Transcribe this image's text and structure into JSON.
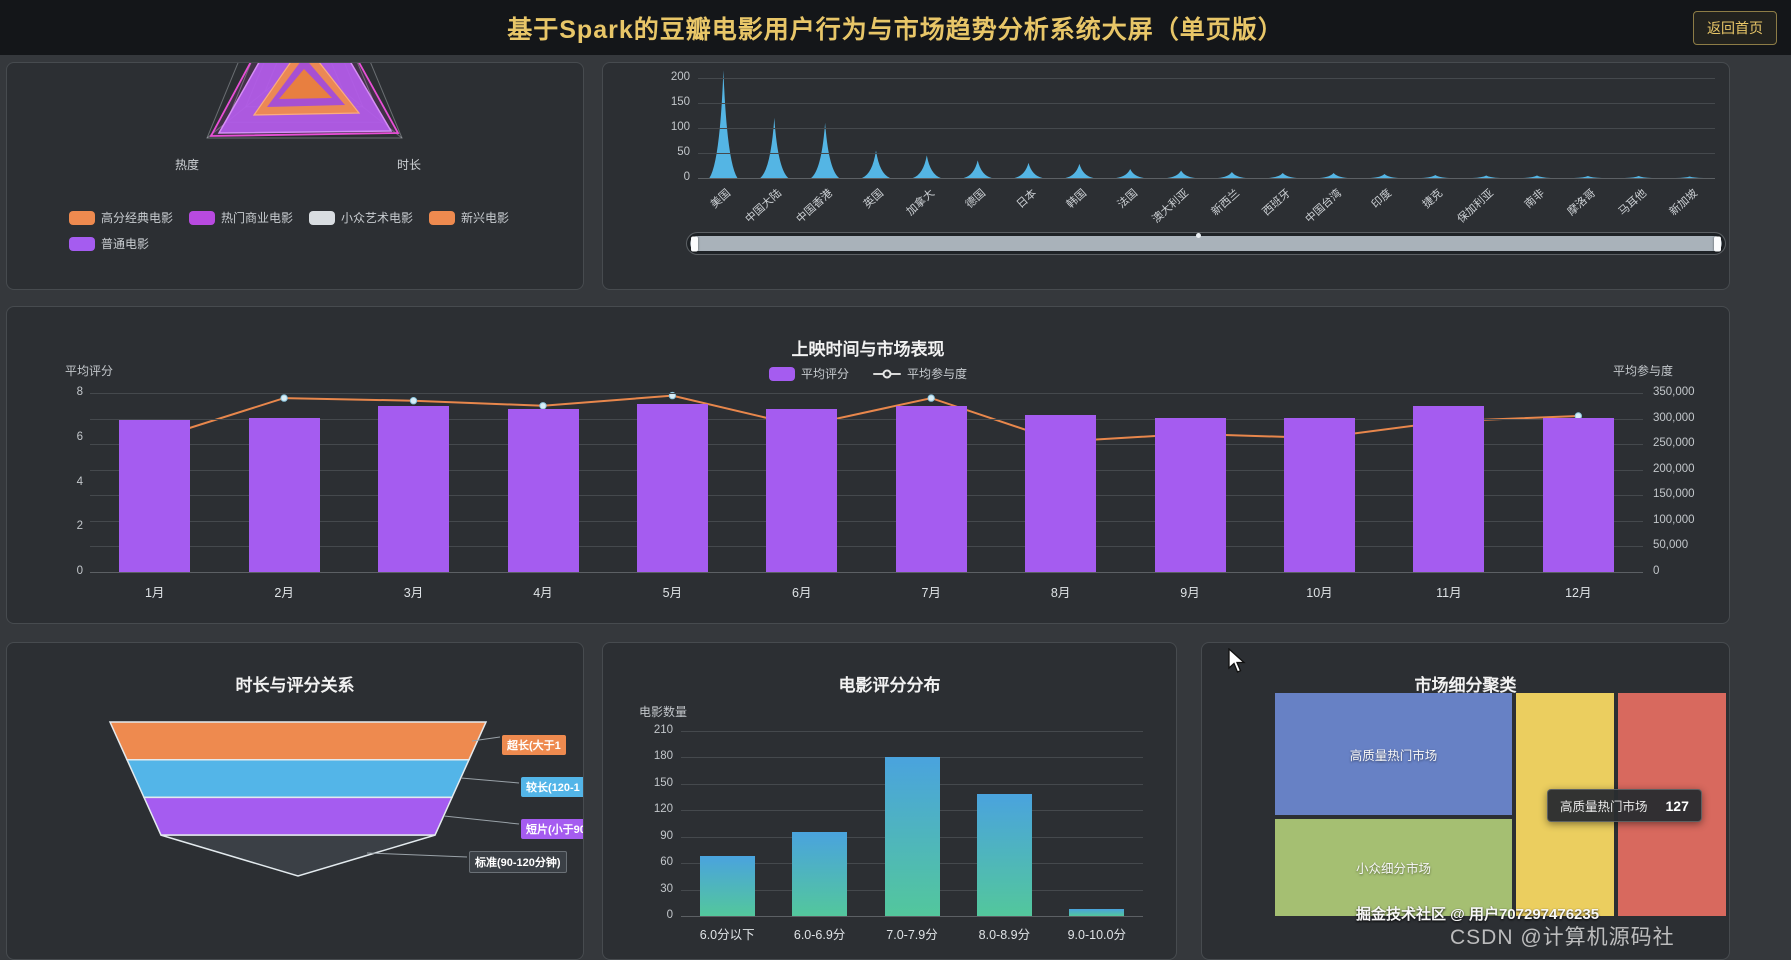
{
  "header": {
    "title": "基于Spark的豆瓣电影用户行为与市场趋势分析系统大屏（单页版）",
    "back_button": "返回首页"
  },
  "radar_panel": {
    "axis_labels": {
      "left": "热度",
      "right": "时长"
    },
    "legend": [
      {
        "label": "高分经典电影",
        "color": "#ee8a4f"
      },
      {
        "label": "热门商业电影",
        "color": "#b84ae0"
      },
      {
        "label": "小众艺术电影",
        "color": "#d9dde1"
      },
      {
        "label": "新兴电影",
        "color": "#ee8a4f"
      },
      {
        "label": "普通电影",
        "color": "#a55cf0"
      }
    ]
  },
  "monthly_panel": {
    "title": "上映时间与市场表现",
    "legend": [
      {
        "label": "平均评分",
        "type": "bar",
        "color": "#a55cf0"
      },
      {
        "label": "平均参与度",
        "type": "line",
        "color": "#d8d8d8"
      }
    ],
    "left_axis_name": "平均评分",
    "right_axis_name": "平均参与度"
  },
  "funnel_panel": {
    "title": "时长与评分关系"
  },
  "rating_panel": {
    "title": "电影评分分布",
    "ylabel": "电影数量"
  },
  "treemap_panel": {
    "title": "市场细分聚类",
    "tooltip": {
      "label": "高质量热门市场",
      "value": "127"
    }
  },
  "watermarks": {
    "line1": "掘金技术社区 @ 用户707297476235",
    "line2": "CSDN @计算机源码社"
  },
  "chart_data": [
    {
      "id": "movie_type_radar",
      "type": "radar",
      "title": "",
      "visible_axis_labels": [
        "热度",
        "时长"
      ],
      "series_names": [
        "高分经典电影",
        "热门商业电影",
        "小众艺术电影",
        "新兴电影",
        "普通电影"
      ],
      "note": "chart top cut off by panel edge; values not readable"
    },
    {
      "id": "country_distribution",
      "type": "bar",
      "categories": [
        "美国",
        "中国大陆",
        "中国香港",
        "英国",
        "加拿大",
        "德国",
        "日本",
        "韩国",
        "法国",
        "澳大利亚",
        "新西兰",
        "西班牙",
        "中国台湾",
        "印度",
        "捷克",
        "保加利亚",
        "南非",
        "摩洛哥",
        "马耳他",
        "新加坡"
      ],
      "values": [
        215,
        120,
        110,
        55,
        45,
        35,
        30,
        28,
        18,
        15,
        12,
        10,
        10,
        8,
        6,
        5,
        5,
        4,
        4,
        3
      ],
      "ylim": [
        0,
        200
      ],
      "yticks": [
        0,
        50,
        100,
        150,
        200
      ],
      "bar_color": "#56bdee",
      "has_datazoom_slider": true
    },
    {
      "id": "monthly_market",
      "type": "bar+line",
      "title": "上映时间与市场表现",
      "categories": [
        "1月",
        "2月",
        "3月",
        "4月",
        "5月",
        "6月",
        "7月",
        "8月",
        "9月",
        "10月",
        "11月",
        "12月"
      ],
      "series": [
        {
          "name": "平均评分",
          "type": "bar",
          "axis": "left",
          "values": [
            6.8,
            6.9,
            7.4,
            7.3,
            7.5,
            7.3,
            7.4,
            7.0,
            6.9,
            6.9,
            7.4,
            6.9
          ]
        },
        {
          "name": "平均参与度",
          "type": "line",
          "axis": "right",
          "values": [
            260000,
            340000,
            335000,
            325000,
            345000,
            285000,
            340000,
            255000,
            270000,
            262000,
            295000,
            305000
          ]
        }
      ],
      "left_axis": {
        "label": "平均评分",
        "ticks": [
          0,
          2,
          4,
          6,
          8
        ],
        "max": 8
      },
      "right_axis": {
        "label": "平均参与度",
        "ticks": [
          "0",
          "50,000",
          "100,000",
          "150,000",
          "200,000",
          "250,000",
          "300,000",
          "350,000"
        ],
        "max": 350000
      },
      "bar_color": "#a55cf0",
      "line_color": "#e8874c"
    },
    {
      "id": "duration_rating_funnel",
      "type": "funnel",
      "title": "时长与评分关系",
      "items": [
        {
          "label": "超长(大于1",
          "color": "#ee8a4f"
        },
        {
          "label": "较长(120-1",
          "color": "#53b5e8"
        },
        {
          "label": "短片(小于90",
          "color": "#a55cf0"
        },
        {
          "label": "标准(90-120分钟)",
          "color": "#3b4046"
        }
      ]
    },
    {
      "id": "rating_distribution",
      "type": "bar",
      "title": "电影评分分布",
      "ylabel": "电影数量",
      "categories": [
        "6.0分以下",
        "6.0-6.9分",
        "7.0-7.9分",
        "8.0-8.9分",
        "9.0-10.0分"
      ],
      "values": [
        68,
        95,
        180,
        138,
        8
      ],
      "ylim": [
        0,
        210
      ],
      "yticks": [
        0,
        30,
        60,
        90,
        120,
        150,
        180,
        210
      ],
      "bar_gradient": [
        "#4aa3de",
        "#53c79c"
      ]
    },
    {
      "id": "market_segment_treemap",
      "type": "treemap",
      "title": "市场细分聚类",
      "blocks": [
        {
          "label": "高质量热门市场",
          "color": "#6781c5",
          "value": 127
        },
        {
          "label": "小众细分市场",
          "color": "#a5bf72"
        },
        {
          "label": "",
          "color": "#ebce5f"
        },
        {
          "label": "",
          "color": "#d8695e"
        }
      ],
      "tooltip": {
        "label": "高质量热门市场",
        "value": 127
      }
    }
  ]
}
